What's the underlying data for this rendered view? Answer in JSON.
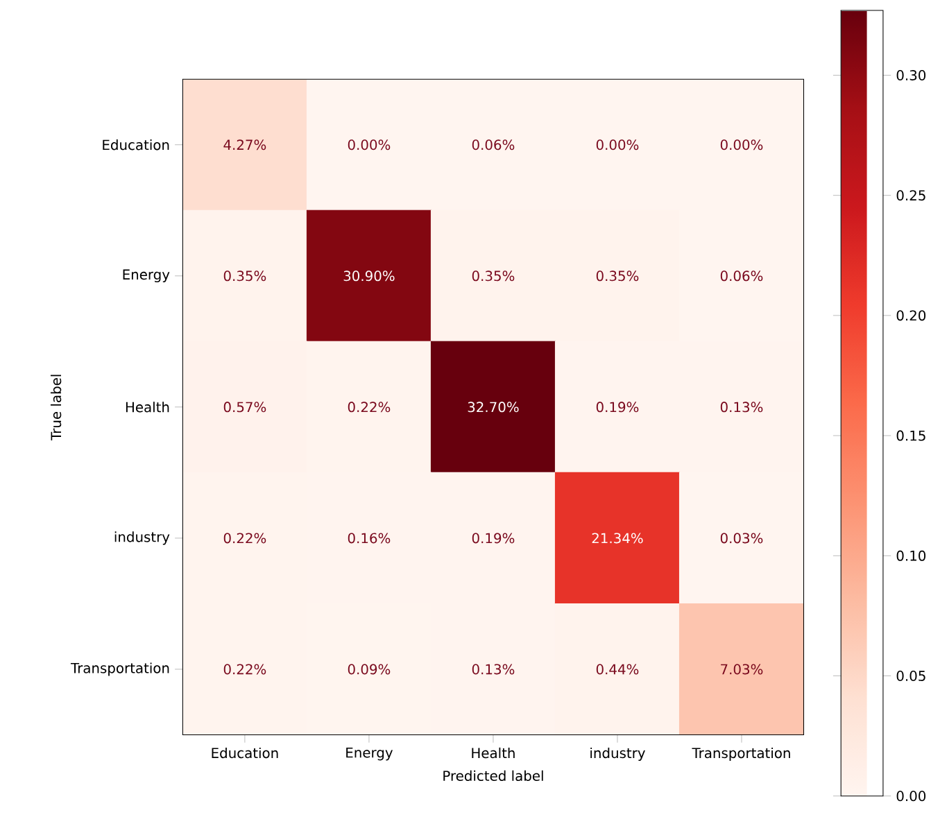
{
  "chart_data": {
    "type": "heatmap",
    "xlabel": "Predicted label",
    "ylabel": "True label",
    "categories": [
      "Education",
      "Energy",
      "Health",
      "industry",
      "Transportation"
    ],
    "y_categories": [
      "Education",
      "Energy",
      "Health",
      "industry",
      "Transportation"
    ],
    "cells": [
      [
        0.0427,
        0.0,
        0.0006,
        0.0,
        0.0
      ],
      [
        0.0035,
        0.309,
        0.0035,
        0.0035,
        0.0006
      ],
      [
        0.0057,
        0.0022,
        0.327,
        0.0019,
        0.0013
      ],
      [
        0.0022,
        0.0016,
        0.0019,
        0.2134,
        0.0003
      ],
      [
        0.0022,
        0.0009,
        0.0013,
        0.0044,
        0.0703
      ]
    ],
    "cell_labels": [
      [
        "4.27%",
        "0.00%",
        "0.06%",
        "0.00%",
        "0.00%"
      ],
      [
        "0.35%",
        "30.90%",
        "0.35%",
        "0.35%",
        "0.06%"
      ],
      [
        "0.57%",
        "0.22%",
        "32.70%",
        "0.19%",
        "0.13%"
      ],
      [
        "0.22%",
        "0.16%",
        "0.19%",
        "21.34%",
        "0.03%"
      ],
      [
        "0.22%",
        "0.09%",
        "0.13%",
        "0.44%",
        "7.03%"
      ]
    ],
    "clim": [
      0,
      0.327
    ],
    "cticks": [
      {
        "value": 0,
        "label": "0.00"
      },
      {
        "value": 0.05,
        "label": "0.05"
      },
      {
        "value": 0.1,
        "label": "0.10"
      },
      {
        "value": 0.15,
        "label": "0.15"
      },
      {
        "value": 0.2,
        "label": "0.20"
      },
      {
        "value": 0.25,
        "label": "0.25"
      },
      {
        "value": 0.3,
        "label": "0.30"
      }
    ]
  }
}
